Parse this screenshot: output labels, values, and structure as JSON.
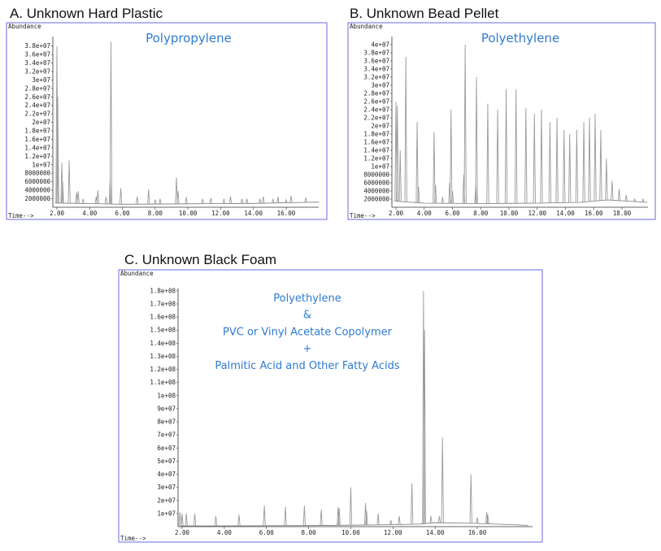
{
  "chart_data": [
    {
      "type": "line",
      "title": "A. Unknown Hard Plastic",
      "annotation": [
        "Polypropylene"
      ],
      "ylabel": "Abundance",
      "xlabel": "Time-->",
      "xlim": [
        1.75,
        18.0
      ],
      "ylim": [
        0,
        39000000
      ],
      "xticks": [
        "2.00",
        "4.00",
        "6.00",
        "8.00",
        "10.00",
        "12.00",
        "14.00",
        "16.00"
      ],
      "yticks": [
        "2000000",
        "4000000",
        "6000000",
        "8000000",
        "1e+07",
        "1.2e+07",
        "1.4e+07",
        "1.6e+07",
        "1.8e+07",
        "2e+07",
        "2.2e+07",
        "2.4e+07",
        "2.6e+07",
        "2.8e+07",
        "3e+07",
        "3.2e+07",
        "3.4e+07",
        "3.6e+07",
        "3.8e+07"
      ],
      "baseline": [
        [
          1.9,
          1000000
        ],
        [
          6,
          700000
        ],
        [
          10,
          800000
        ],
        [
          14,
          900000
        ],
        [
          18,
          1200000
        ]
      ],
      "peaks": [
        [
          2.0,
          38000000
        ],
        [
          2.05,
          26000000
        ],
        [
          2.3,
          10500000
        ],
        [
          2.35,
          6000000
        ],
        [
          2.75,
          11000000
        ],
        [
          3.2,
          3500000
        ],
        [
          3.3,
          3800000
        ],
        [
          3.6,
          2000000
        ],
        [
          4.4,
          2500000
        ],
        [
          4.5,
          4000000
        ],
        [
          5.0,
          2500000
        ],
        [
          5.25,
          6500000
        ],
        [
          5.3,
          39000000
        ],
        [
          5.9,
          4500000
        ],
        [
          6.9,
          2500000
        ],
        [
          7.6,
          4200000
        ],
        [
          8.0,
          1800000
        ],
        [
          8.3,
          2000000
        ],
        [
          9.3,
          7000000
        ],
        [
          9.4,
          3800000
        ],
        [
          9.9,
          2400000
        ],
        [
          10.9,
          2000000
        ],
        [
          11.4,
          2200000
        ],
        [
          12.2,
          2000000
        ],
        [
          12.6,
          2500000
        ],
        [
          13.3,
          2000000
        ],
        [
          13.6,
          2000000
        ],
        [
          14.4,
          2000000
        ],
        [
          14.6,
          2500000
        ],
        [
          15.2,
          2000000
        ],
        [
          15.5,
          2500000
        ],
        [
          16.0,
          1800000
        ],
        [
          16.3,
          2700000
        ],
        [
          17.2,
          2200000
        ]
      ]
    },
    {
      "type": "line",
      "title": "B. Unknown Bead Pellet",
      "annotation": [
        "Polyethylene"
      ],
      "ylabel": "Abundance",
      "xlabel": "Time-->",
      "xlim": [
        1.7,
        19.8
      ],
      "ylim": [
        0,
        41000000
      ],
      "xticks": [
        "2.00",
        "4.00",
        "6.00",
        "8.00",
        "10.00",
        "12.00",
        "14.00",
        "16.00",
        "18.00"
      ],
      "yticks": [
        "2000000",
        "4000000",
        "6000000",
        "8000000",
        "1e+07",
        "1.2e+07",
        "1.4e+07",
        "1.6e+07",
        "1.8e+07",
        "2e+07",
        "2.2e+07",
        "2.4e+07",
        "2.6e+07",
        "2.8e+07",
        "3e+07",
        "3.2e+07",
        "3.4e+07",
        "3.6e+07",
        "3.8e+07",
        "4e+07"
      ],
      "baseline": [
        [
          1.9,
          1500000
        ],
        [
          4,
          1000000
        ],
        [
          8,
          900000
        ],
        [
          12,
          1000000
        ],
        [
          15,
          1200000
        ],
        [
          17,
          1800000
        ],
        [
          19.8,
          1200000
        ]
      ],
      "peaks": [
        [
          2.0,
          26000000
        ],
        [
          2.1,
          25000000
        ],
        [
          2.3,
          14000000
        ],
        [
          2.7,
          37000000
        ],
        [
          3.5,
          21000000
        ],
        [
          3.6,
          5000000
        ],
        [
          4.7,
          18500000
        ],
        [
          4.8,
          5500000
        ],
        [
          5.3,
          2500000
        ],
        [
          5.8,
          6000000
        ],
        [
          5.9,
          24000000
        ],
        [
          6.0,
          4000000
        ],
        [
          6.8,
          8000000
        ],
        [
          6.9,
          40000000
        ],
        [
          7.65,
          5500000
        ],
        [
          7.7,
          32000000
        ],
        [
          8.5,
          25500000
        ],
        [
          9.2,
          24000000
        ],
        [
          9.8,
          29000000
        ],
        [
          10.5,
          29000000
        ],
        [
          11.2,
          24500000
        ],
        [
          11.8,
          23000000
        ],
        [
          12.3,
          24000000
        ],
        [
          12.9,
          21000000
        ],
        [
          13.4,
          22000000
        ],
        [
          13.9,
          19000000
        ],
        [
          14.3,
          18000000
        ],
        [
          14.8,
          19000000
        ],
        [
          15.3,
          21000000
        ],
        [
          15.7,
          22000000
        ],
        [
          16.1,
          23000000
        ],
        [
          16.5,
          19000000
        ],
        [
          16.9,
          12000000
        ],
        [
          17.3,
          6500000
        ],
        [
          17.8,
          4500000
        ],
        [
          18.3,
          3000000
        ],
        [
          18.9,
          2000000
        ],
        [
          19.5,
          2000000
        ]
      ]
    },
    {
      "type": "line",
      "title": "C. Unknown Black Foam",
      "annotation": [
        "Polyethylene",
        "&",
        "PVC or Vinyl Acetate Copolymer",
        "+",
        "Palmitic Acid and Other Fatty Acids"
      ],
      "ylabel": "Abundance",
      "xlabel": "Time-->",
      "xlim": [
        1.8,
        18.4
      ],
      "ylim": [
        0,
        182000000
      ],
      "xticks": [
        "2.00",
        "4.00",
        "6.00",
        "8.00",
        "10.00",
        "12.00",
        "14.00",
        "16.00"
      ],
      "yticks": [
        "1e+07",
        "2e+07",
        "3e+07",
        "4e+07",
        "5e+07",
        "6e+07",
        "7e+07",
        "8e+07",
        "9e+07",
        "1e+08",
        "1.1e+08",
        "1.2e+08",
        "1.3e+08",
        "1.4e+08",
        "1.5e+08",
        "1.6e+08",
        "1.7e+08",
        "1.8e+08"
      ],
      "baseline": [
        [
          1.9,
          500000
        ],
        [
          8,
          800000
        ],
        [
          12,
          1500000
        ],
        [
          13.3,
          2000000
        ],
        [
          14,
          3000000
        ],
        [
          16,
          2500000
        ],
        [
          18.4,
          1000000
        ]
      ],
      "peaks": [
        [
          1.9,
          11000000
        ],
        [
          2.0,
          10000000
        ],
        [
          2.2,
          10000000
        ],
        [
          2.6,
          10000000
        ],
        [
          3.6,
          8000000
        ],
        [
          4.7,
          9000000
        ],
        [
          5.9,
          16000000
        ],
        [
          6.9,
          15000000
        ],
        [
          7.8,
          16000000
        ],
        [
          8.6,
          13000000
        ],
        [
          9.4,
          15000000
        ],
        [
          9.45,
          14000000
        ],
        [
          10.0,
          30000000
        ],
        [
          10.7,
          18000000
        ],
        [
          10.75,
          12000000
        ],
        [
          11.3,
          10000000
        ],
        [
          11.9,
          5000000
        ],
        [
          12.3,
          8000000
        ],
        [
          12.9,
          33000000
        ],
        [
          13.45,
          180000000
        ],
        [
          13.5,
          150000000
        ],
        [
          13.8,
          8000000
        ],
        [
          14.2,
          8000000
        ],
        [
          14.35,
          68000000
        ],
        [
          15.7,
          40000000
        ],
        [
          16.0,
          7000000
        ],
        [
          16.45,
          11000000
        ],
        [
          16.5,
          9000000
        ]
      ]
    }
  ],
  "colors": {
    "frame": "#6b6be0",
    "annotation": "#2e7bcf",
    "trace": "#9a9a9a"
  }
}
